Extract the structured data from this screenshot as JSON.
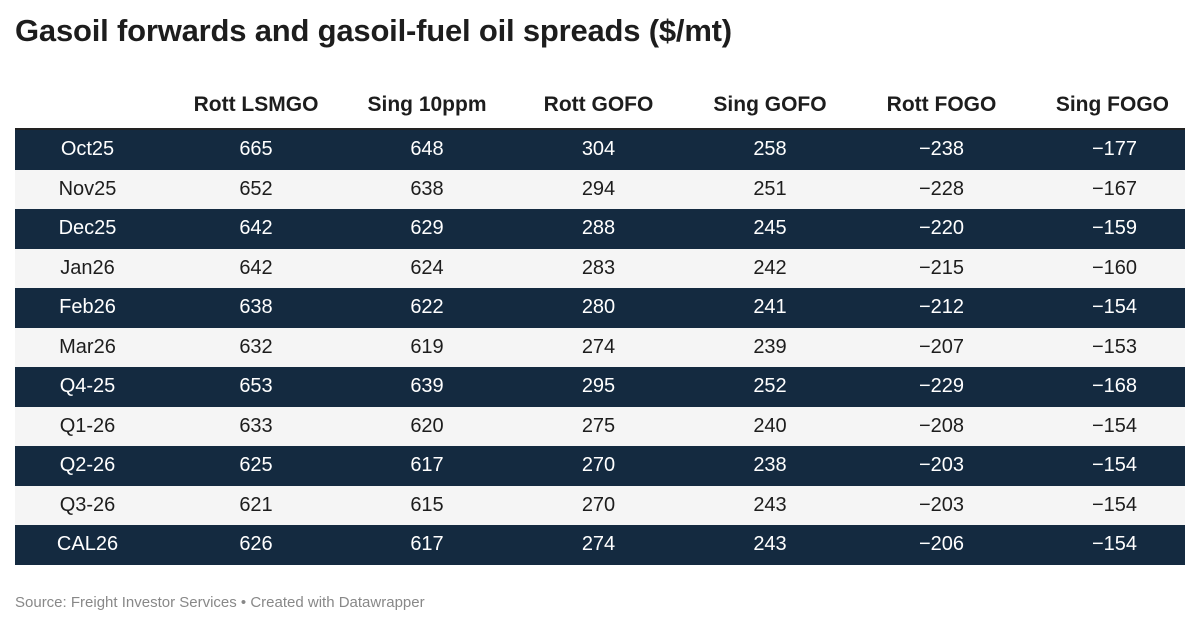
{
  "title": "Gasoil forwards and gasoil-fuel oil spreads ($/mt)",
  "source": "Source: Freight Investor Services • Created with Datawrapper",
  "colors": {
    "row_dark": "#142a40",
    "row_light": "#f5f5f5",
    "header_rule": "#222222",
    "source_text": "#888888"
  },
  "chart_data": {
    "type": "table",
    "title": "Gasoil forwards and gasoil-fuel oil spreads ($/mt)",
    "columns": [
      "",
      "Rott LSMGO",
      "Sing 10ppm",
      "Rott GOFO",
      "Sing GOFO",
      "Rott FOGO",
      "Sing FOGO"
    ],
    "rows": [
      [
        "Oct25",
        "665",
        "648",
        "304",
        "258",
        "−238",
        "−177"
      ],
      [
        "Nov25",
        "652",
        "638",
        "294",
        "251",
        "−228",
        "−167"
      ],
      [
        "Dec25",
        "642",
        "629",
        "288",
        "245",
        "−220",
        "−159"
      ],
      [
        "Jan26",
        "642",
        "624",
        "283",
        "242",
        "−215",
        "−160"
      ],
      [
        "Feb26",
        "638",
        "622",
        "280",
        "241",
        "−212",
        "−154"
      ],
      [
        "Mar26",
        "632",
        "619",
        "274",
        "239",
        "−207",
        "−153"
      ],
      [
        "Q4-25",
        "653",
        "639",
        "295",
        "252",
        "−229",
        "−168"
      ],
      [
        "Q1-26",
        "633",
        "620",
        "275",
        "240",
        "−208",
        "−154"
      ],
      [
        "Q2-26",
        "625",
        "617",
        "270",
        "238",
        "−203",
        "−154"
      ],
      [
        "Q3-26",
        "621",
        "615",
        "270",
        "243",
        "−203",
        "−154"
      ],
      [
        "CAL26",
        "626",
        "617",
        "274",
        "243",
        "−206",
        "−154"
      ]
    ]
  }
}
